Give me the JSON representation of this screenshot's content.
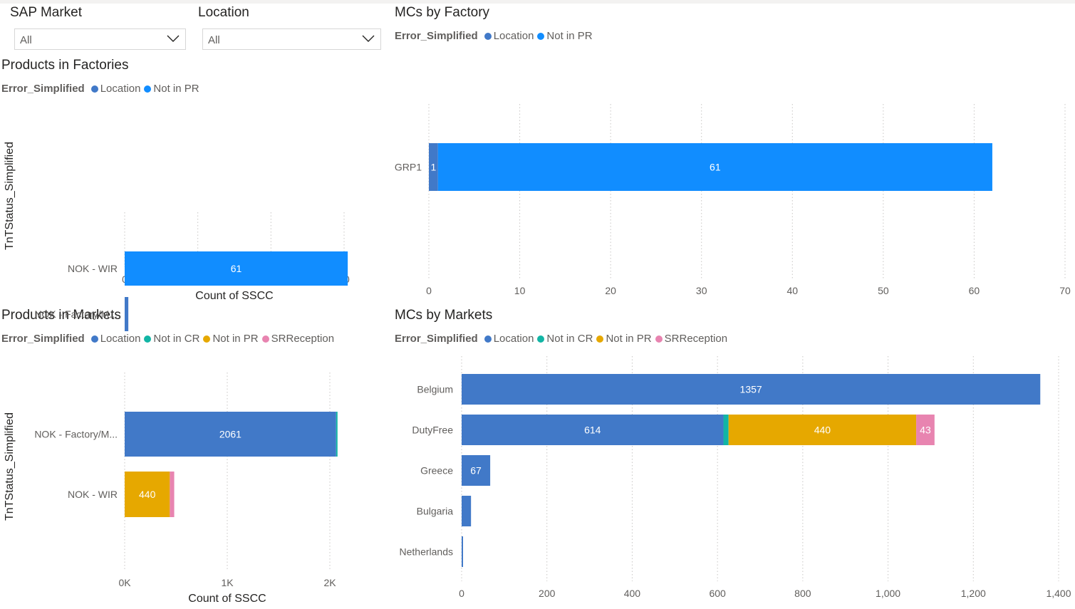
{
  "colors": {
    "Location": "#4179c8",
    "Not in PR factory": "#118dff",
    "Not in CR": "#12b5a5",
    "Not in PR": "#e6a800",
    "SRReception": "#e884b0",
    "grid": "#c8c6c4",
    "axis_text": "#605e5c"
  },
  "slicers": {
    "sap_market": {
      "title": "SAP Market",
      "value": "All"
    },
    "location": {
      "title": "Location",
      "value": "All"
    }
  },
  "legend_title": "Error_Simplified",
  "visuals": {
    "products_factories": {
      "title": "Products in Factories"
    },
    "mcs_factory": {
      "title": "MCs by Factory"
    },
    "products_markets": {
      "title": "Products in Markets"
    },
    "mcs_markets": {
      "title": "MCs by Markets"
    }
  },
  "chart_data": [
    {
      "id": "products_factories",
      "type": "bar",
      "orientation": "horizontal",
      "stacked": true,
      "title": "Products in Factories",
      "xlabel": "Count of SSCC",
      "ylabel": "TnTStatus_Simplified",
      "categories": [
        "NOK - WIR",
        "NOK - Factory/M..."
      ],
      "series": [
        {
          "name": "Location",
          "color_key": "Location",
          "values": [
            0,
            1
          ]
        },
        {
          "name": "Not in PR",
          "color_key": "Not in PR factory",
          "values": [
            61,
            0
          ]
        }
      ],
      "data_labels": {
        "Not in PR": [
          "61",
          ""
        ]
      },
      "xlim": [
        0,
        60
      ],
      "xticks": [
        "0",
        "20",
        "40",
        "60"
      ],
      "legend": [
        "Location",
        "Not in PR"
      ],
      "legend_position": "top-left"
    },
    {
      "id": "mcs_factory",
      "type": "bar",
      "orientation": "horizontal",
      "stacked": true,
      "title": "MCs by Factory",
      "xlabel": "",
      "ylabel": "",
      "categories": [
        "GRP1"
      ],
      "series": [
        {
          "name": "Location",
          "color_key": "Location",
          "values": [
            1
          ]
        },
        {
          "name": "Not in PR",
          "color_key": "Not in PR factory",
          "values": [
            61
          ]
        }
      ],
      "data_labels": {
        "Location": [
          "1"
        ],
        "Not in PR": [
          "61"
        ]
      },
      "xlim": [
        0,
        70
      ],
      "xticks": [
        "0",
        "10",
        "20",
        "30",
        "40",
        "50",
        "60",
        "70"
      ],
      "legend": [
        "Location",
        "Not in PR"
      ],
      "legend_position": "top-left"
    },
    {
      "id": "products_markets",
      "type": "bar",
      "orientation": "horizontal",
      "stacked": true,
      "title": "Products in Markets",
      "xlabel": "Count of SSCC",
      "ylabel": "TnTStatus_Simplified",
      "categories": [
        "NOK - Factory/M...",
        "NOK - WIR"
      ],
      "series": [
        {
          "name": "Location",
          "color_key": "Location",
          "values": [
            2061,
            0
          ]
        },
        {
          "name": "Not in CR",
          "color_key": "Not in CR",
          "values": [
            12,
            0
          ]
        },
        {
          "name": "Not in PR",
          "color_key": "Not in PR",
          "values": [
            0,
            440
          ]
        },
        {
          "name": "SRReception",
          "color_key": "SRReception",
          "values": [
            0,
            43
          ]
        }
      ],
      "data_labels": {
        "Location": [
          "2061",
          ""
        ],
        "Not in PR": [
          "",
          "440"
        ]
      },
      "xlim": [
        0,
        2000
      ],
      "xticks": [
        "0K",
        "1K",
        "2K"
      ],
      "legend": [
        "Location",
        "Not in CR",
        "Not in PR",
        "SRReception"
      ],
      "legend_position": "top-left"
    },
    {
      "id": "mcs_markets",
      "type": "bar",
      "orientation": "horizontal",
      "stacked": true,
      "title": "MCs by Markets",
      "xlabel": "",
      "ylabel": "",
      "categories": [
        "Belgium",
        "DutyFree",
        "Greece",
        "Bulgaria",
        "Netherlands"
      ],
      "series": [
        {
          "name": "Location",
          "color_key": "Location",
          "values": [
            1357,
            614,
            67,
            22,
            1
          ]
        },
        {
          "name": "Not in CR",
          "color_key": "Not in CR",
          "values": [
            0,
            12,
            0,
            0,
            0
          ]
        },
        {
          "name": "Not in PR",
          "color_key": "Not in PR",
          "values": [
            0,
            440,
            0,
            0,
            0
          ]
        },
        {
          "name": "SRReception",
          "color_key": "SRReception",
          "values": [
            0,
            43,
            0,
            0,
            0
          ]
        }
      ],
      "data_labels": {
        "Location": [
          "1357",
          "614",
          "67",
          "",
          ""
        ],
        "Not in PR": [
          "",
          "440",
          "",
          "",
          ""
        ],
        "SRReception": [
          "",
          "43",
          "",
          "",
          ""
        ]
      },
      "xlim": [
        0,
        1400
      ],
      "xticks": [
        "0",
        "200",
        "400",
        "600",
        "800",
        "1,000",
        "1,200",
        "1,400"
      ],
      "legend": [
        "Location",
        "Not in CR",
        "Not in PR",
        "SRReception"
      ],
      "legend_position": "top-left"
    }
  ]
}
